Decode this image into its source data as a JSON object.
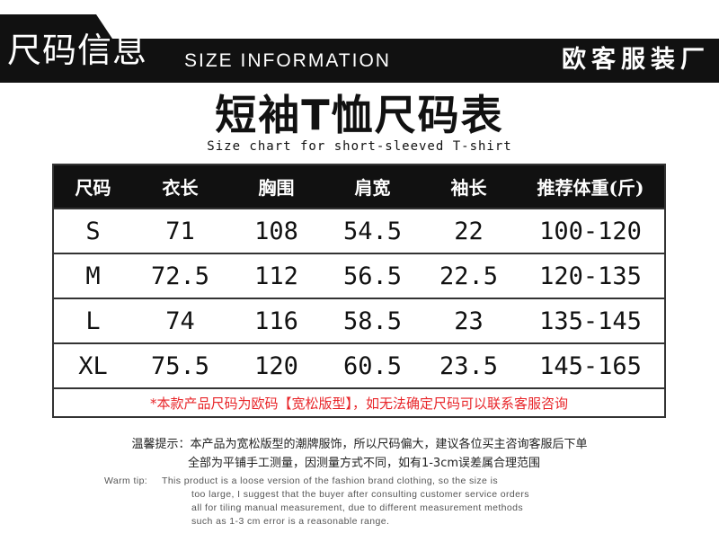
{
  "header": {
    "title": "尺码信息",
    "subtitle": "SIZE INFORMATION",
    "brand": "欧客服装厂"
  },
  "chart": {
    "title": "短袖T恤尺码表",
    "subtitle": "Size chart for short-sleeved T-shirt"
  },
  "table": {
    "columns": [
      "尺码",
      "衣长",
      "胸围",
      "肩宽",
      "袖长",
      "推荐体重(斤)"
    ],
    "rows": [
      [
        "S",
        "71",
        "108",
        "54.5",
        "22",
        "100-120"
      ],
      [
        "M",
        "72.5",
        "112",
        "56.5",
        "22.5",
        "120-135"
      ],
      [
        "L",
        "74",
        "116",
        "58.5",
        "23",
        "135-145"
      ],
      [
        "XL",
        "75.5",
        "120",
        "60.5",
        "23.5",
        "145-165"
      ]
    ],
    "note": "*本款产品尺码为欧码【宽松版型】，如无法确定尺码可以联系客服咨询"
  },
  "tips": {
    "cn": [
      "温馨提示：本产品为宽松版型的潮牌服饰，所以尺码偏大，建议各位买主咨询客服后下单",
      "全部为平铺手工测量，因测量方式不同，如有1-3cm误差属合理范围"
    ],
    "en_label": "Warm tip:",
    "en": [
      "This product is a loose version of the fashion brand clothing, so the size is",
      "too large, I suggest that the buyer after consulting customer service orders",
      "all for tiling manual measurement, due to different measurement methods",
      "such as 1-3 cm error is a reasonable range."
    ]
  },
  "colors": {
    "header": "#111111",
    "note": "#e8262a"
  }
}
